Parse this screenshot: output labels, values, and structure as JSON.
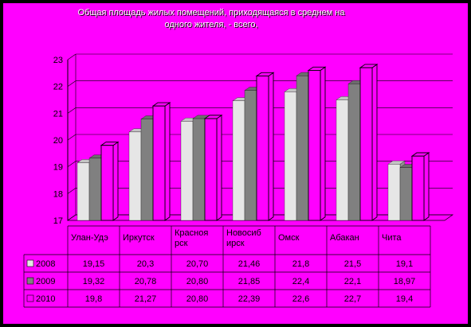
{
  "title": "Общая площадь жилых помещений, приходящаяся в среднем на\nодного жителя, - всего,",
  "chart_data": {
    "type": "bar",
    "categories": [
      "Улан-Удэ",
      "Иркутск",
      "Красноярск",
      "Новосибирск",
      "Омск",
      "Абакан",
      "Чита"
    ],
    "category_labels": [
      "Улан-Удэ",
      "Иркутск",
      "Красноя\nрск",
      "Новосиб\nирск",
      "Омск",
      "Абакан",
      "Чита"
    ],
    "series": [
      {
        "name": "2008",
        "color": "#e6e6e6",
        "values": [
          19.15,
          20.3,
          20.7,
          21.46,
          21.8,
          21.5,
          19.1
        ],
        "labels": [
          "19,15",
          "20,3",
          "20,70",
          "21,46",
          "21,8",
          "21,5",
          "19,1"
        ]
      },
      {
        "name": "2009",
        "color": "#808080",
        "values": [
          19.32,
          20.78,
          20.8,
          21.85,
          22.4,
          22.1,
          18.97
        ],
        "labels": [
          "19,32",
          "20,78",
          "20,80",
          "21,85",
          "22,4",
          "22,1",
          "18,97"
        ]
      },
      {
        "name": "2010",
        "color": "#ff00ff",
        "values": [
          19.8,
          21.27,
          20.8,
          22.39,
          22.6,
          22.7,
          19.4
        ],
        "labels": [
          "19,8",
          "21,27",
          "20,80",
          "22,39",
          "22,6",
          "22,7",
          "19,4"
        ]
      }
    ],
    "yticks": [
      17,
      18,
      19,
      20,
      21,
      22,
      23
    ],
    "ylim": [
      17,
      23
    ],
    "legend": "data-table",
    "grid": true
  }
}
